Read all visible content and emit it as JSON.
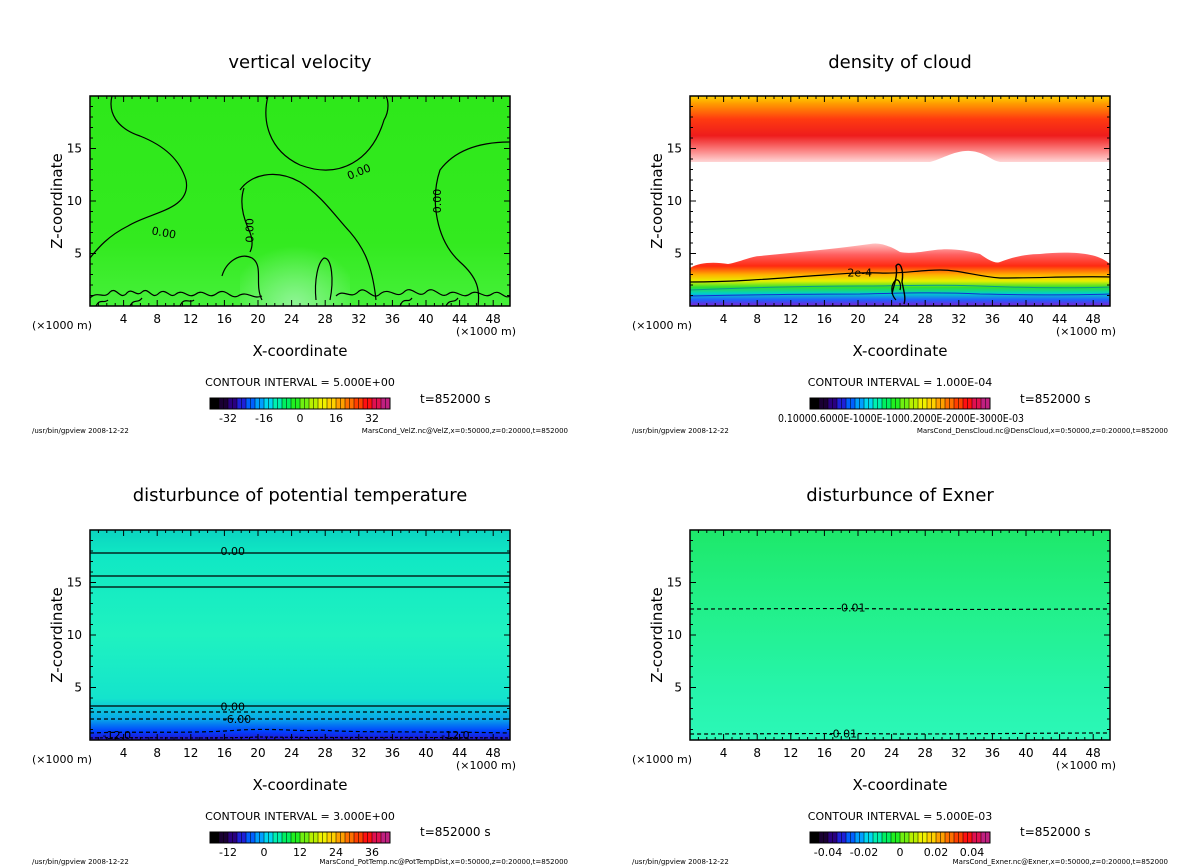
{
  "chart_data": [
    {
      "type": "heatmap",
      "title": "vertical velocity",
      "xlabel": "X-coordinate",
      "ylabel": "Z-coordinate",
      "x_unit": "(×1000 m)",
      "xlim": [
        0,
        50
      ],
      "ylim": [
        0,
        20
      ],
      "xticks": [
        4,
        8,
        12,
        16,
        20,
        24,
        28,
        32,
        36,
        40,
        44,
        48
      ],
      "yticks": [
        5,
        10,
        15
      ],
      "contour_interval": "CONTOUR INTERVAL = 5.000E+00",
      "time": "t=852000 s",
      "colorbar": {
        "range": [
          -40,
          40
        ],
        "ticks": [
          -32,
          -16,
          0,
          16,
          32
        ],
        "tick_labels": [
          "-32",
          "-16",
          "0",
          "16",
          "32"
        ]
      },
      "contour_labels": [
        {
          "text": "0.00",
          "x": 32,
          "z": 12.8,
          "angle": -22
        },
        {
          "text": "0.00",
          "x": 8.8,
          "z": 7.0,
          "angle": 10
        },
        {
          "text": "0.00",
          "x": 19,
          "z": 7.2,
          "angle": -90
        },
        {
          "text": "0.00",
          "x": 41.3,
          "z": 10,
          "angle": -90
        }
      ],
      "footer_left": "/usr/bin/gpview 2008-12-22",
      "footer_right": "MarsCond_VelZ.nc@VelZ,x=0:50000,z=0:20000,t=852000"
    },
    {
      "type": "heatmap",
      "title": "density of cloud",
      "xlabel": "X-coordinate",
      "ylabel": "Z-coordinate",
      "x_unit": "(×1000 m)",
      "xlim": [
        0,
        50
      ],
      "ylim": [
        0,
        20
      ],
      "xticks": [
        4,
        8,
        12,
        16,
        20,
        24,
        28,
        32,
        36,
        40,
        44,
        48
      ],
      "yticks": [
        5,
        10,
        15
      ],
      "contour_interval": "CONTOUR INTERVAL = 1.000E-04",
      "time": "t=852000 s",
      "colorbar": {
        "range": [
          0.0001,
          0.001
        ],
        "tick_labels_text": "0.10000.6000E-1000E-1000.2000E-2000E-3000E-03"
      },
      "contour_labels": [
        {
          "text": "2e-4",
          "x": 20.2,
          "z": 3.2,
          "angle": 0
        }
      ],
      "footer_left": "/usr/bin/gpview 2008-12-22",
      "footer_right": "MarsCond_DensCloud.nc@DensCloud,x=0:50000,z=0:20000,t=852000"
    },
    {
      "type": "heatmap",
      "title": "disturbunce of potential temperature",
      "xlabel": "X-coordinate",
      "ylabel": "Z-coordinate",
      "x_unit": "(×1000 m)",
      "xlim": [
        0,
        50
      ],
      "ylim": [
        0,
        20
      ],
      "xticks": [
        4,
        8,
        12,
        16,
        20,
        24,
        28,
        32,
        36,
        40,
        44,
        48
      ],
      "yticks": [
        5,
        10,
        15
      ],
      "contour_interval": "CONTOUR INTERVAL = 3.000E+00",
      "time": "t=852000 s",
      "colorbar": {
        "range": [
          -18,
          42
        ],
        "ticks": [
          -12,
          0,
          12,
          24,
          36
        ],
        "tick_labels": [
          "-12",
          "0",
          "12",
          "24",
          "36"
        ]
      },
      "contour_labels": [
        {
          "text": "0.00",
          "x": 17,
          "z": 18.0,
          "angle": 0
        },
        {
          "text": "0.00",
          "x": 17,
          "z": 3.2,
          "angle": 0
        },
        {
          "text": "-6.00",
          "x": 17.5,
          "z": 2.0,
          "angle": 0
        },
        {
          "text": "-12.0",
          "x": 3.2,
          "z": 0.5,
          "angle": 0
        },
        {
          "text": "-12.0",
          "x": 43.5,
          "z": 0.5,
          "angle": 0
        }
      ],
      "footer_left": "/usr/bin/gpview 2008-12-22",
      "footer_right": "MarsCond_PotTemp.nc@PotTempDist,x=0:50000,z=0:20000,t=852000"
    },
    {
      "type": "heatmap",
      "title": "disturbunce of Exner",
      "xlabel": "X-coordinate",
      "ylabel": "Z-coordinate",
      "x_unit": "(×1000 m)",
      "xlim": [
        0,
        50
      ],
      "ylim": [
        0,
        20
      ],
      "xticks": [
        4,
        8,
        12,
        16,
        20,
        24,
        28,
        32,
        36,
        40,
        44,
        48
      ],
      "yticks": [
        5,
        10,
        15
      ],
      "contour_interval": "CONTOUR INTERVAL = 5.000E-03",
      "time": "t=852000 s",
      "colorbar": {
        "range": [
          -0.05,
          0.05
        ],
        "ticks": [
          -0.04,
          -0.02,
          0,
          0.02,
          0.04
        ],
        "tick_labels": [
          "-0.04",
          "-0.02",
          "0",
          "0.02",
          "0.04"
        ]
      },
      "contour_labels": [
        {
          "text": "-0.01",
          "x": 19.2,
          "z": 12.6,
          "angle": 0
        },
        {
          "text": "-0.01",
          "x": 18.2,
          "z": 0.6,
          "angle": 0
        }
      ],
      "footer_left": "/usr/bin/gpview 2008-12-22",
      "footer_right": "MarsCond_Exner.nc@Exner,x=0:50000,z=0:20000,t=852000"
    }
  ]
}
